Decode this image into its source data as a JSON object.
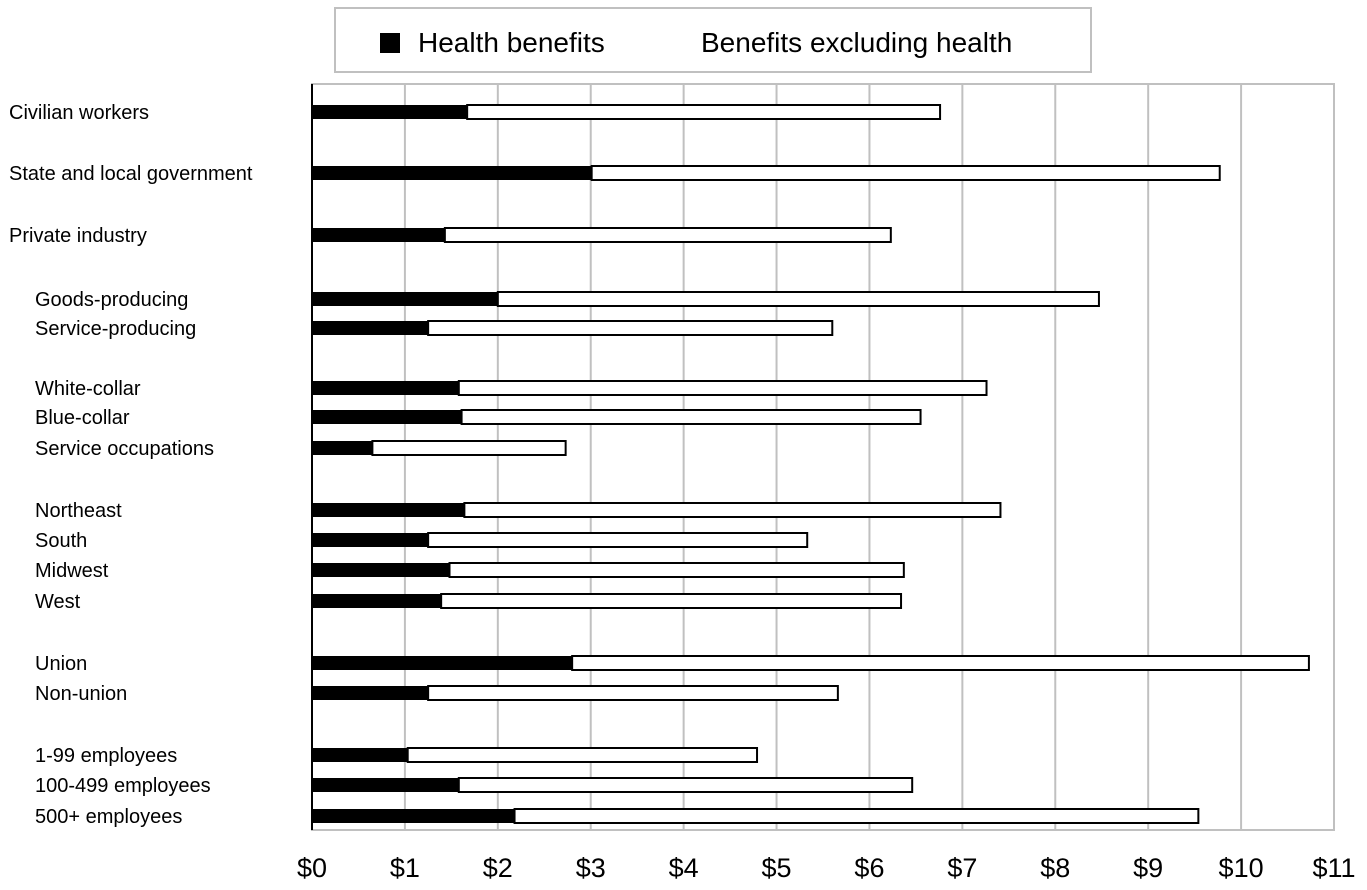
{
  "chart_data": {
    "type": "bar",
    "orientation": "horizontal",
    "stacked": true,
    "title": "",
    "xlabel": "",
    "ylabel": "",
    "xlim": [
      0,
      11
    ],
    "x_tick_labels": [
      "$0",
      "$1",
      "$2",
      "$3",
      "$4",
      "$5",
      "$6",
      "$7",
      "$8",
      "$9",
      "$10",
      "$11"
    ],
    "grid": "vertical",
    "legend_position": "top",
    "categories": [
      "Civilian workers",
      "State and local government",
      "Private industry",
      "Goods-producing",
      "Service-producing",
      "White-collar",
      "Blue-collar",
      "Service occupations",
      "Northeast",
      "South",
      "Midwest",
      "West",
      "Union",
      "Non-union",
      "1-99 employees",
      "100-499 employees",
      "500+ employees"
    ],
    "indented": [
      false,
      false,
      false,
      true,
      true,
      true,
      true,
      true,
      true,
      true,
      true,
      true,
      true,
      true,
      true,
      true,
      true
    ],
    "series": [
      {
        "name": "Health benefits",
        "color": "#000000",
        "values": [
          1.67,
          3.01,
          1.43,
          2.0,
          1.25,
          1.58,
          1.61,
          0.65,
          1.64,
          1.25,
          1.48,
          1.39,
          2.8,
          1.25,
          1.03,
          1.58,
          2.18
        ]
      },
      {
        "name": "Benefits excluding health",
        "color": "#ffffff",
        "values": [
          5.09,
          6.76,
          4.8,
          6.47,
          4.35,
          5.68,
          4.94,
          2.08,
          5.77,
          4.08,
          4.89,
          4.95,
          7.93,
          4.41,
          3.76,
          4.88,
          7.36
        ]
      }
    ]
  }
}
